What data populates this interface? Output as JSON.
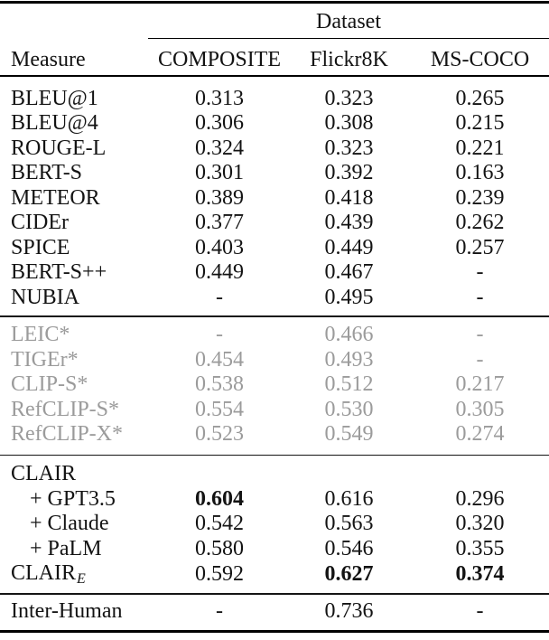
{
  "colors": {
    "background": "#ffffff",
    "text": "#131313",
    "muted_text": "#9b9b9b",
    "rule": "#000000"
  },
  "table": {
    "group_header": "Dataset",
    "columns": {
      "measure": "Measure",
      "datasets": [
        "COMPOSITE",
        "Flickr8K",
        "MS-COCO"
      ]
    },
    "sections": [
      {
        "muted": false,
        "rows": [
          {
            "label": "BLEU@1",
            "values": [
              "0.313",
              "0.323",
              "0.265"
            ]
          },
          {
            "label": "BLEU@4",
            "values": [
              "0.306",
              "0.308",
              "0.215"
            ]
          },
          {
            "label": "ROUGE-L",
            "values": [
              "0.324",
              "0.323",
              "0.221"
            ]
          },
          {
            "label": "BERT-S",
            "values": [
              "0.301",
              "0.392",
              "0.163"
            ]
          },
          {
            "label": "METEOR",
            "values": [
              "0.389",
              "0.418",
              "0.239"
            ]
          },
          {
            "label": "CIDEr",
            "values": [
              "0.377",
              "0.439",
              "0.262"
            ]
          },
          {
            "label": "SPICE",
            "values": [
              "0.403",
              "0.449",
              "0.257"
            ]
          },
          {
            "label": "BERT-S++",
            "values": [
              "0.449",
              "0.467",
              "-"
            ]
          },
          {
            "label": "NUBIA",
            "values": [
              "-",
              "0.495",
              "-"
            ]
          }
        ]
      },
      {
        "muted": true,
        "rows": [
          {
            "label": "LEIC*",
            "values": [
              "-",
              "0.466",
              "-"
            ]
          },
          {
            "label": "TIGEr*",
            "values": [
              "0.454",
              "0.493",
              "-"
            ]
          },
          {
            "label": "CLIP-S*",
            "values": [
              "0.538",
              "0.512",
              "0.217"
            ]
          },
          {
            "label": "RefCLIP-S*",
            "values": [
              "0.554",
              "0.530",
              "0.305"
            ]
          },
          {
            "label": "RefCLIP-X*",
            "values": [
              "0.523",
              "0.549",
              "0.274"
            ]
          }
        ]
      },
      {
        "muted": false,
        "rows": [
          {
            "label": "CLAIR",
            "values": [
              "",
              "",
              ""
            ]
          },
          {
            "label": "+ GPT3.5",
            "indent": true,
            "values": [
              "0.604",
              "0.616",
              "0.296"
            ],
            "bold": [
              true,
              false,
              false
            ]
          },
          {
            "label": "+ Claude",
            "indent": true,
            "values": [
              "0.542",
              "0.563",
              "0.320"
            ],
            "bold": [
              false,
              false,
              false
            ]
          },
          {
            "label": "+ PaLM",
            "indent": true,
            "values": [
              "0.580",
              "0.546",
              "0.355"
            ],
            "bold": [
              false,
              false,
              false
            ]
          },
          {
            "label": "CLAIR",
            "label_subscript": "E",
            "values": [
              "0.592",
              "0.627",
              "0.374"
            ],
            "bold": [
              false,
              true,
              true
            ]
          }
        ]
      },
      {
        "muted": false,
        "rows": [
          {
            "label": "Inter-Human",
            "values": [
              "-",
              "0.736",
              "-"
            ]
          }
        ]
      }
    ]
  }
}
